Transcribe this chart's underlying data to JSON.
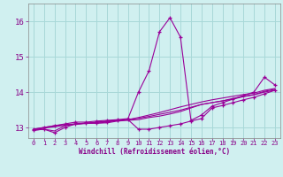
{
  "background_color": "#d0f0f0",
  "grid_color": "#a8d8d8",
  "line_color": "#990099",
  "marker_color": "#990099",
  "xlabel": "Windchill (Refroidissement éolien,°C)",
  "xlabel_color": "#880088",
  "tick_color": "#880088",
  "xlim": [
    -0.5,
    23.5
  ],
  "ylim": [
    12.7,
    16.5
  ],
  "yticks": [
    13,
    14,
    15,
    16
  ],
  "xticks": [
    0,
    1,
    2,
    3,
    4,
    5,
    6,
    7,
    8,
    9,
    10,
    11,
    12,
    13,
    14,
    15,
    16,
    17,
    18,
    19,
    20,
    21,
    22,
    23
  ],
  "lines": [
    {
      "y": [
        12.95,
        13.0,
        13.05,
        13.1,
        13.15,
        13.15,
        13.18,
        13.2,
        13.22,
        13.25,
        14.0,
        14.6,
        15.7,
        16.1,
        15.55,
        13.2,
        13.35,
        13.6,
        13.7,
        13.8,
        13.9,
        14.0,
        14.42,
        14.2
      ],
      "markers": true
    },
    {
      "y": [
        12.95,
        13.0,
        13.05,
        13.08,
        13.1,
        13.12,
        13.15,
        13.18,
        13.2,
        13.22,
        13.28,
        13.35,
        13.42,
        13.5,
        13.58,
        13.65,
        13.72,
        13.78,
        13.83,
        13.88,
        13.93,
        13.97,
        14.05,
        14.1
      ],
      "markers": false
    },
    {
      "y": [
        12.93,
        12.98,
        13.02,
        13.06,
        13.09,
        13.11,
        13.14,
        13.17,
        13.2,
        13.22,
        13.26,
        13.31,
        13.37,
        13.43,
        13.49,
        13.57,
        13.65,
        13.7,
        13.75,
        13.8,
        13.87,
        13.92,
        14.0,
        14.05
      ],
      "markers": false
    },
    {
      "y": [
        12.92,
        12.95,
        12.85,
        13.0,
        13.1,
        13.12,
        13.12,
        13.15,
        13.2,
        13.22,
        12.95,
        12.95,
        13.0,
        13.05,
        13.1,
        13.18,
        13.25,
        13.55,
        13.62,
        13.7,
        13.78,
        13.85,
        13.95,
        14.05
      ],
      "markers": true
    },
    {
      "y": [
        12.92,
        12.95,
        12.9,
        13.05,
        13.1,
        13.12,
        13.12,
        13.13,
        13.18,
        13.2,
        13.22,
        13.28,
        13.32,
        13.38,
        13.45,
        13.55,
        13.65,
        13.7,
        13.75,
        13.82,
        13.88,
        13.93,
        14.02,
        14.08
      ],
      "markers": false
    }
  ]
}
